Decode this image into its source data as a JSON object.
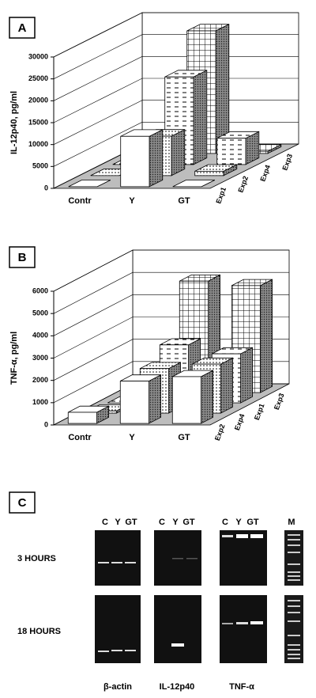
{
  "chart_data": [
    {
      "type": "bar3d",
      "panel": "A",
      "y_label": "IL-12p40, pg/ml",
      "categories": [
        "Contr",
        "Y",
        "GT"
      ],
      "series": [
        {
          "name": "Exp1",
          "pattern": "white",
          "values": [
            0,
            11500,
            0
          ]
        },
        {
          "name": "Exp2",
          "pattern": "dots",
          "values": [
            0,
            9000,
            1000
          ]
        },
        {
          "name": "Exp4",
          "pattern": "dashes",
          "values": [
            0,
            20000,
            6000
          ]
        },
        {
          "name": "Exp3",
          "pattern": "grid",
          "values": [
            0,
            28000,
            500
          ]
        }
      ],
      "ylim": [
        0,
        30000
      ],
      "yticks": [
        0,
        5000,
        10000,
        15000,
        20000,
        25000,
        30000
      ],
      "grid": true
    },
    {
      "type": "bar3d",
      "panel": "B",
      "y_label": "TNF-α, pg/ml",
      "categories": [
        "Contr",
        "Y",
        "GT"
      ],
      "series": [
        {
          "name": "Exp2",
          "pattern": "white",
          "values": [
            500,
            1900,
            2100
          ]
        },
        {
          "name": "Exp4",
          "pattern": "dots",
          "values": [
            100,
            2000,
            2200
          ]
        },
        {
          "name": "Exp1",
          "pattern": "dashes",
          "values": [
            0,
            2600,
            2200
          ]
        },
        {
          "name": "Exp3",
          "pattern": "grid",
          "values": [
            0,
            5000,
            4800
          ]
        }
      ],
      "ylim": [
        0,
        6000
      ],
      "yticks": [
        0,
        1000,
        2000,
        3000,
        4000,
        5000,
        6000
      ],
      "grid": true
    }
  ],
  "panel_c": {
    "panel": "C",
    "rows": [
      "3 HOURS",
      "18 HOURS"
    ],
    "marker": "M",
    "genes": [
      {
        "name": "β-actin",
        "lanes": [
          "C",
          "Y",
          "GT"
        ]
      },
      {
        "name": "IL-12p40",
        "lanes": [
          "C",
          "Y",
          "GT"
        ]
      },
      {
        "name": "TNF-α",
        "lanes": [
          "C",
          "Y",
          "GT"
        ]
      }
    ]
  }
}
